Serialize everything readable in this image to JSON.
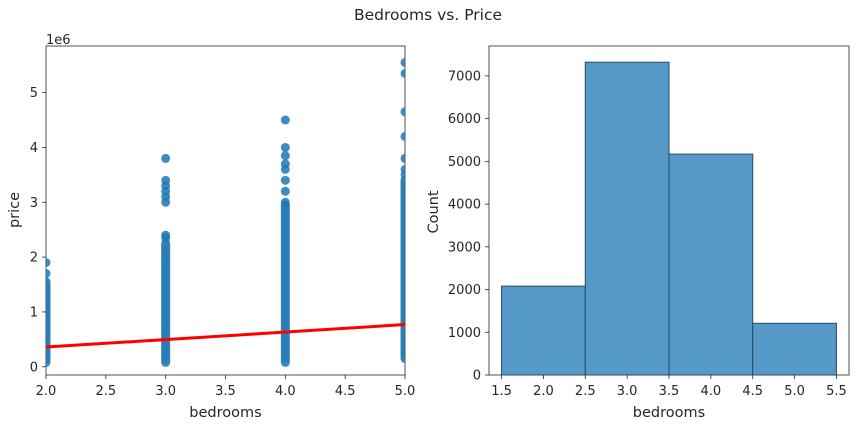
{
  "title": "Bedrooms vs. Price",
  "chart_data": [
    {
      "type": "scatter",
      "xlabel": "bedrooms",
      "ylabel": "price",
      "y_offset_label": "1e6",
      "xlim": [
        2.0,
        5.0
      ],
      "ylim": [
        -0.15,
        5.85
      ],
      "xticks": [
        "2.0",
        "2.5",
        "3.0",
        "3.5",
        "4.0",
        "4.5",
        "5.0"
      ],
      "yticks": [
        "0",
        "1",
        "2",
        "3",
        "4",
        "5"
      ],
      "color": "#1f77b4",
      "regression_color": "#ff0000",
      "regression_line": {
        "x": [
          2.0,
          5.0
        ],
        "y": [
          0.36,
          0.77
        ]
      },
      "columns": [
        {
          "x": 2.0,
          "dense_range": [
            0.08,
            1.55
          ],
          "outliers": [
            1.7,
            1.9
          ]
        },
        {
          "x": 3.0,
          "dense_range": [
            0.08,
            2.25
          ],
          "outliers": [
            2.35,
            2.4,
            3.0,
            3.1,
            3.2,
            3.3,
            3.4,
            3.8
          ]
        },
        {
          "x": 4.0,
          "dense_range": [
            0.08,
            2.95
          ],
          "outliers": [
            3.0,
            3.2,
            3.4,
            3.6,
            3.7,
            3.85,
            4.0,
            4.5
          ]
        },
        {
          "x": 5.0,
          "dense_range": [
            0.15,
            3.4
          ],
          "outliers": [
            3.5,
            3.6,
            3.8,
            4.2,
            4.65,
            5.35,
            5.55
          ]
        }
      ]
    },
    {
      "type": "histogram",
      "xlabel": "bedrooms",
      "ylabel": "Count",
      "xlim": [
        1.35,
        5.65
      ],
      "ylim": [
        0,
        7700
      ],
      "xticks": [
        "1.5",
        "2.0",
        "2.5",
        "3.0",
        "3.5",
        "4.0",
        "4.5",
        "5.0",
        "5.5"
      ],
      "yticks": [
        "0",
        "1000",
        "2000",
        "3000",
        "4000",
        "5000",
        "6000",
        "7000"
      ],
      "color": "#5499c7",
      "edge_color": "#2c4a5e",
      "bins": [
        {
          "start": 1.5,
          "end": 2.5,
          "count": 2080
        },
        {
          "start": 2.5,
          "end": 3.5,
          "count": 7320
        },
        {
          "start": 3.5,
          "end": 4.5,
          "count": 5170
        },
        {
          "start": 4.5,
          "end": 5.5,
          "count": 1210
        }
      ]
    }
  ]
}
